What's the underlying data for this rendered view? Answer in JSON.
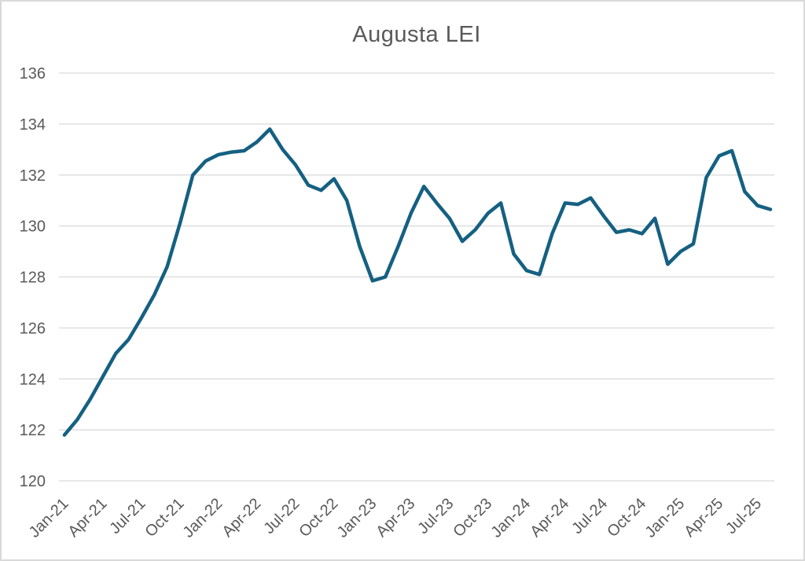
{
  "chart_data": {
    "type": "line",
    "title": "Augusta LEI",
    "series_name": "Augusta LEI",
    "x": [
      "Jan-21",
      "Feb-21",
      "Mar-21",
      "Apr-21",
      "May-21",
      "Jun-21",
      "Jul-21",
      "Aug-21",
      "Sep-21",
      "Oct-21",
      "Nov-21",
      "Dec-21",
      "Jan-22",
      "Feb-22",
      "Mar-22",
      "Apr-22",
      "May-22",
      "Jun-22",
      "Jul-22",
      "Aug-22",
      "Sep-22",
      "Oct-22",
      "Nov-22",
      "Dec-22",
      "Jan-23",
      "Feb-23",
      "Mar-23",
      "Apr-23",
      "May-23",
      "Jun-23",
      "Jul-23",
      "Aug-23",
      "Sep-23",
      "Oct-23",
      "Nov-23",
      "Dec-23",
      "Jan-24",
      "Feb-24",
      "Mar-24",
      "Apr-24",
      "May-24",
      "Jun-24",
      "Jul-24",
      "Aug-24",
      "Sep-24",
      "Oct-24",
      "Nov-24",
      "Dec-24",
      "Jan-25",
      "Feb-25",
      "Mar-25",
      "Apr-25",
      "May-25",
      "Jun-25",
      "Jul-25",
      "Aug-25"
    ],
    "values": [
      121.8,
      122.4,
      123.2,
      124.1,
      125.0,
      125.55,
      126.4,
      127.3,
      128.4,
      130.1,
      132.0,
      132.55,
      132.8,
      132.9,
      132.95,
      133.3,
      133.8,
      133.0,
      132.4,
      131.6,
      131.4,
      131.85,
      131.0,
      129.2,
      127.85,
      128.0,
      129.2,
      130.5,
      131.55,
      130.9,
      130.3,
      129.4,
      129.85,
      130.5,
      130.9,
      128.9,
      128.25,
      128.1,
      129.7,
      130.9,
      130.85,
      131.1,
      130.4,
      129.75,
      129.85,
      129.7,
      130.3,
      128.5,
      129.0,
      129.3,
      131.9,
      132.75,
      132.95,
      131.35,
      130.8,
      130.65
    ],
    "x_tick_labels": [
      "Jan-21",
      "Apr-21",
      "Jul-21",
      "Oct-21",
      "Jan-22",
      "Apr-22",
      "Jul-22",
      "Oct-22",
      "Jan-23",
      "Apr-23",
      "Jul-23",
      "Oct-23",
      "Jan-24",
      "Apr-24",
      "Jul-24",
      "Oct-24",
      "Jan-25",
      "Apr-25",
      "Jul-25"
    ],
    "x_tick_every": 3,
    "y_ticks": [
      120,
      122,
      124,
      126,
      128,
      130,
      132,
      134,
      136
    ],
    "ylim": [
      120,
      136
    ],
    "grid": "horizontal",
    "legend": "none",
    "xlabel": "",
    "ylabel": ""
  },
  "colors": {
    "line": "#156082",
    "grid": "#d9d9d9",
    "axis_text": "#595959",
    "title_text": "#595959",
    "background": "#ffffff",
    "frame_border": "#d9d9d9"
  }
}
